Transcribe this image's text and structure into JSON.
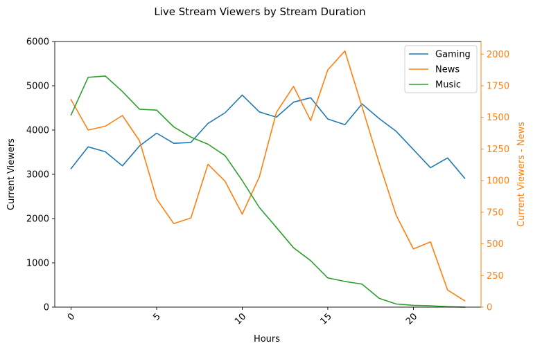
{
  "chart_data": {
    "type": "line",
    "title": "Live Stream Viewers by Stream Duration",
    "xlabel": "Hours",
    "ylabel": "Current Viewers",
    "ylabel_right": "Current Viewers - News",
    "x": [
      0,
      1,
      2,
      3,
      4,
      5,
      6,
      7,
      8,
      9,
      10,
      11,
      12,
      13,
      14,
      15,
      16,
      17,
      18,
      19,
      20,
      21,
      22,
      23
    ],
    "xlim": [
      -0.95,
      23.95
    ],
    "ylim": [
      0,
      6000
    ],
    "ylim_right": [
      0,
      2100
    ],
    "x_ticks": [
      0,
      5,
      10,
      15,
      20
    ],
    "x_tick_labels": [
      "0",
      "5",
      "10",
      "15",
      "20"
    ],
    "y_ticks": [
      0,
      1000,
      2000,
      3000,
      4000,
      5000,
      6000
    ],
    "y_tick_labels": [
      "0",
      "1000",
      "2000",
      "3000",
      "4000",
      "5000",
      "6000"
    ],
    "y_ticks_right": [
      0,
      250,
      500,
      750,
      1000,
      1250,
      1500,
      1750,
      2000
    ],
    "y_tick_labels_right": [
      "0",
      "250",
      "500",
      "750",
      "1000",
      "1250",
      "1500",
      "1750",
      "2000"
    ],
    "grid": false,
    "legend_position": "top-right",
    "series": [
      {
        "name": "Gaming",
        "axis": "left",
        "color": "#1f77b4",
        "values": [
          3130,
          3620,
          3510,
          3190,
          3640,
          3930,
          3700,
          3720,
          4150,
          4390,
          4790,
          4410,
          4290,
          4630,
          4730,
          4250,
          4120,
          4590,
          4260,
          3970,
          3560,
          3150,
          3370,
          2910
        ]
      },
      {
        "name": "News",
        "axis": "right",
        "color": "#ff7f0e",
        "values": [
          1640,
          1400,
          1430,
          1515,
          1315,
          855,
          660,
          705,
          1130,
          995,
          735,
          1030,
          1540,
          1745,
          1475,
          1875,
          2025,
          1585,
          1140,
          725,
          460,
          515,
          135,
          50
        ]
      },
      {
        "name": "Music",
        "axis": "left",
        "color": "#2ca02c",
        "values": [
          4340,
          5190,
          5220,
          4870,
          4470,
          4450,
          4070,
          3840,
          3680,
          3420,
          2860,
          2250,
          1800,
          1340,
          1050,
          660,
          580,
          520,
          200,
          70,
          40,
          30,
          10,
          0
        ]
      }
    ]
  }
}
